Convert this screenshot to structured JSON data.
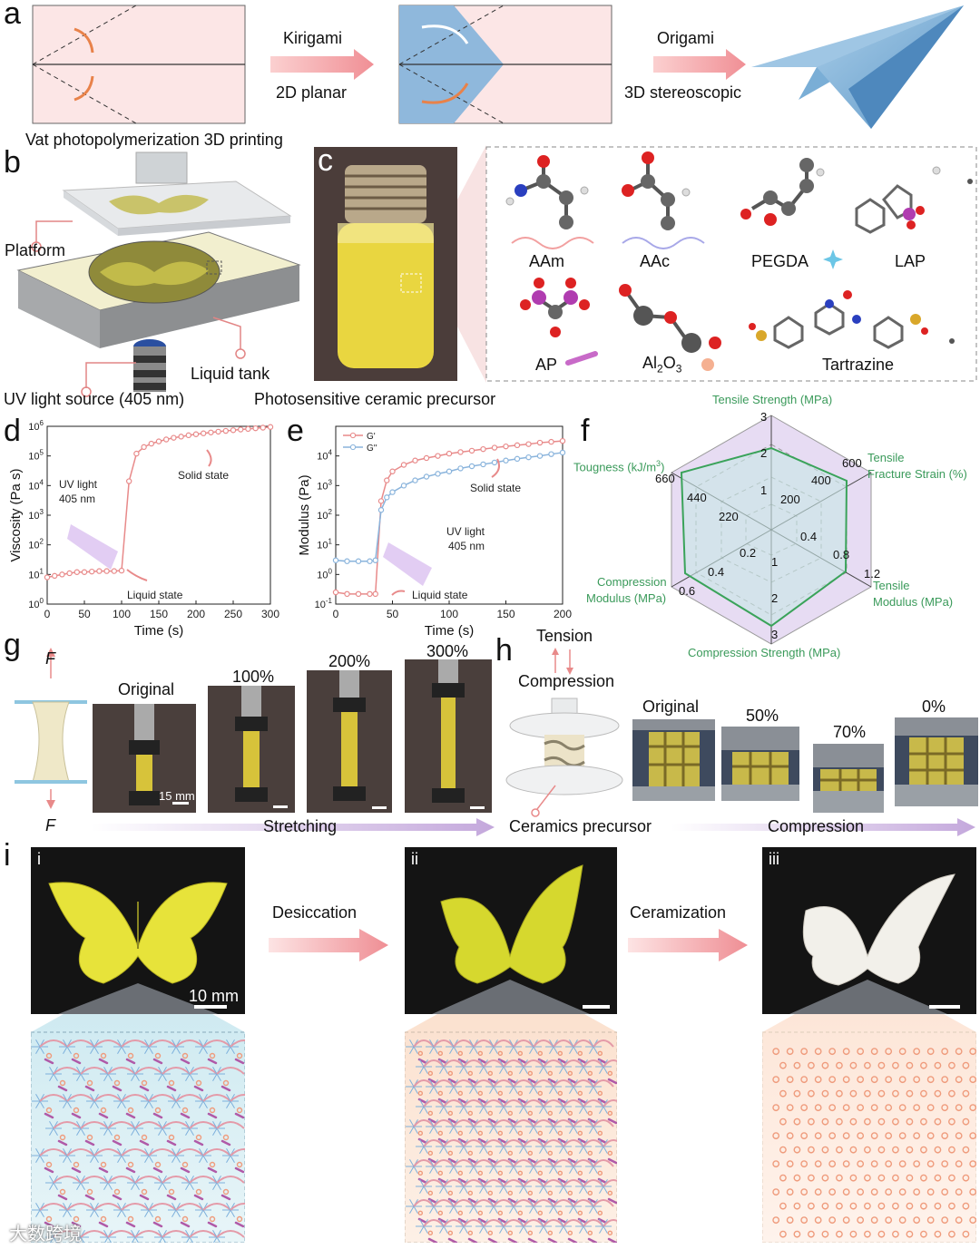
{
  "panels": {
    "a": {
      "label": "a",
      "step1_top": "Kirigami",
      "step1_bottom": "2D planar",
      "step2_top": "Origami",
      "step2_bottom": "3D stereoscopic",
      "colors": {
        "paper": "#fbe3e3",
        "blue": "#8fb8dc",
        "arrow": "#f39b9b"
      }
    },
    "b": {
      "label": "b",
      "title": "Vat photopolymerization 3D printing",
      "platform": "Platform",
      "tank": "Liquid tank",
      "uv": "UV light source (405 nm)"
    },
    "c": {
      "label": "c",
      "caption": "Photosensitive ceramic precursor",
      "molecules": [
        "AAm",
        "AAc",
        "PEGDA",
        "LAP",
        "AP",
        "Al2O3",
        "Tartrazine"
      ]
    },
    "f": {
      "label": "f",
      "axes": [
        "Tensile Strength (MPa)",
        "Tensile Fracture Strain (%)",
        "Tensile Modulus (MPa)",
        "Compression Strength (MPa)",
        "Compression Modulus (MPa)",
        "Tougness (kJ/m3)"
      ],
      "ticks": {
        "tensile_strength": [
          "1",
          "2",
          "3"
        ],
        "fracture_strain": [
          "200",
          "400",
          "600"
        ],
        "tensile_modulus": [
          "0.4",
          "0.8",
          "1.2"
        ],
        "compression_strength": [
          "1",
          "2",
          "3"
        ],
        "compression_modulus": [
          "0.2",
          "0.4",
          "0.6"
        ],
        "toughness": [
          "220",
          "440",
          "660"
        ]
      },
      "values": [
        2.2,
        560,
        1.0,
        2.5,
        0.52,
        660
      ]
    },
    "g": {
      "label": "g",
      "force": "F",
      "stages": [
        "Original",
        "100%",
        "200%",
        "300%"
      ],
      "scale": "15 mm",
      "arrow_label": "Stretching"
    },
    "h": {
      "label": "h",
      "tension": "Tension",
      "compression_top": "Compression",
      "stages": [
        "Original",
        "50%",
        "70%",
        "0%"
      ],
      "precursor": "Ceramics precursor",
      "arrow_label": "Compression"
    },
    "i": {
      "label": "i",
      "sub": [
        "i",
        "ii",
        "iii"
      ],
      "step1": "Desiccation",
      "step2": "Ceramization",
      "scale": "10 mm"
    }
  },
  "watermark": "大数跨境",
  "chart_data": [
    {
      "type": "line",
      "panel": "d",
      "xlabel": "Time (s)",
      "ylabel": "Viscosity (Pa s)",
      "xlim": [
        0,
        300
      ],
      "xticks": [
        "0",
        "50",
        "100",
        "150",
        "200",
        "250",
        "300"
      ],
      "yscale": "log",
      "ylim": [
        1,
        1000000
      ],
      "yticks": [
        "10^0",
        "10^1",
        "10^2",
        "10^3",
        "10^4",
        "10^5",
        "10^6"
      ],
      "annotations": [
        "UV light",
        "405 nm",
        "Solid state",
        "Liquid state"
      ],
      "series": [
        {
          "name": "",
          "color": "#e88a8a",
          "x": [
            0,
            10,
            20,
            30,
            40,
            50,
            60,
            70,
            80,
            90,
            100,
            110,
            120,
            130,
            140,
            150,
            160,
            170,
            180,
            190,
            200,
            210,
            220,
            230,
            240,
            250,
            260,
            270,
            280,
            290,
            300
          ],
          "y": [
            8,
            9,
            10,
            11,
            12,
            12,
            12.5,
            13,
            13,
            13,
            13.5,
            14000,
            120000,
            200000,
            260000,
            310000,
            360000,
            410000,
            450000,
            500000,
            540000,
            580000,
            620000,
            660000,
            700000,
            740000,
            780000,
            820000,
            860000,
            900000,
            950000
          ]
        }
      ]
    },
    {
      "type": "line",
      "panel": "e",
      "xlabel": "Time (s)",
      "ylabel": "Modulus (Pa)",
      "xlim": [
        0,
        200
      ],
      "xticks": [
        "0",
        "50",
        "100",
        "150",
        "200"
      ],
      "yscale": "log",
      "ylim": [
        0.1,
        100000
      ],
      "yticks": [
        "10^-1",
        "10^0",
        "10^1",
        "10^2",
        "10^3",
        "10^4"
      ],
      "annotations": [
        "Solid state",
        "UV light",
        "405 nm",
        "Liquid state"
      ],
      "series": [
        {
          "name": "G'",
          "color": "#e88a8a",
          "x": [
            0,
            10,
            20,
            30,
            35,
            40,
            45,
            50,
            60,
            70,
            80,
            90,
            100,
            110,
            120,
            130,
            140,
            150,
            160,
            170,
            180,
            190,
            200
          ],
          "y": [
            0.25,
            0.22,
            0.22,
            0.22,
            0.22,
            300,
            1500,
            3000,
            5000,
            7000,
            8500,
            10000,
            12000,
            13500,
            15000,
            17000,
            19000,
            21000,
            23000,
            25000,
            28000,
            30000,
            32000
          ]
        },
        {
          "name": "G''",
          "color": "#8ab4dc",
          "x": [
            0,
            10,
            20,
            30,
            35,
            40,
            45,
            50,
            60,
            70,
            80,
            90,
            100,
            110,
            120,
            130,
            140,
            150,
            160,
            170,
            180,
            190,
            200
          ],
          "y": [
            3,
            2.8,
            2.8,
            2.8,
            3,
            150,
            400,
            600,
            1000,
            1500,
            2000,
            2500,
            3000,
            3800,
            4500,
            5200,
            6000,
            7000,
            8000,
            9000,
            10000,
            11500,
            13000
          ]
        }
      ]
    }
  ]
}
